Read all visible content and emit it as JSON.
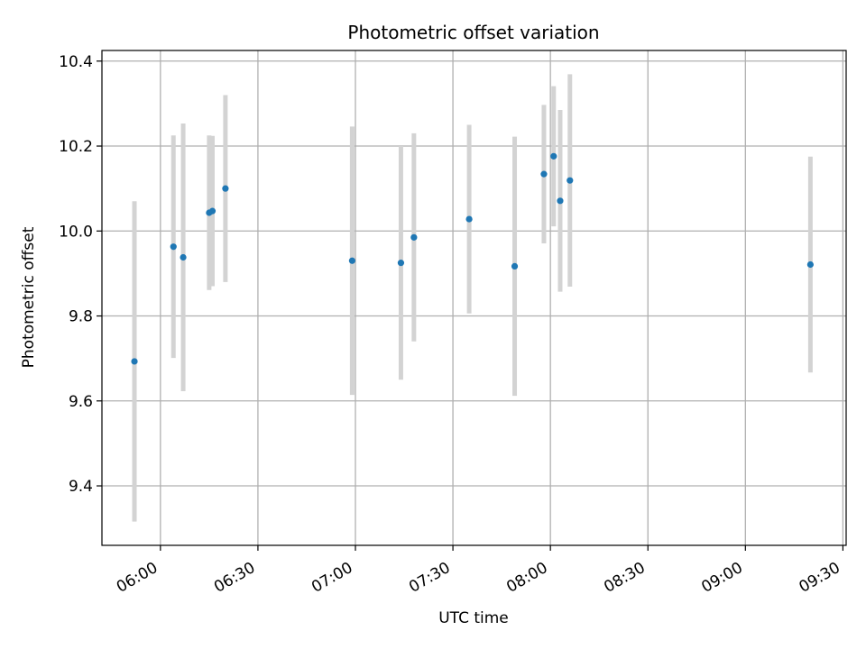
{
  "chart_data": {
    "type": "scatter",
    "title": "Photometric offset variation",
    "xlabel": "UTC time",
    "ylabel": "Photometric offset",
    "x_tick_labels": [
      "06:00",
      "06:30",
      "07:00",
      "07:30",
      "08:00",
      "08:30",
      "09:00",
      "09:30"
    ],
    "y_tick_labels": [
      "9.4",
      "9.6",
      "9.8",
      "10.0",
      "10.2",
      "10.4"
    ],
    "x_ticks": [
      "06:00",
      "06:30",
      "07:00",
      "07:30",
      "08:00",
      "08:30",
      "09:00",
      "09:30"
    ],
    "y_ticks": [
      9.4,
      9.6,
      9.8,
      10.0,
      10.2,
      10.4
    ],
    "xlim": [
      "05:42",
      "09:31"
    ],
    "ylim": [
      9.26,
      10.425
    ],
    "grid": true,
    "marker_color": "#1f77b4",
    "errorbar_color": "#d3d3d3",
    "points": [
      {
        "x": "05:52",
        "y": 9.693,
        "err": 0.377
      },
      {
        "x": "06:04",
        "y": 9.963,
        "err": 0.262
      },
      {
        "x": "06:07",
        "y": 9.938,
        "err": 0.315
      },
      {
        "x": "06:15",
        "y": 10.043,
        "err": 0.182
      },
      {
        "x": "06:16",
        "y": 10.047,
        "err": 0.177
      },
      {
        "x": "06:20",
        "y": 10.1,
        "err": 0.22
      },
      {
        "x": "06:59",
        "y": 9.93,
        "err": 0.316
      },
      {
        "x": "07:14",
        "y": 9.925,
        "err": 0.275
      },
      {
        "x": "07:18",
        "y": 9.985,
        "err": 0.245
      },
      {
        "x": "07:35",
        "y": 10.028,
        "err": 0.222
      },
      {
        "x": "07:49",
        "y": 9.917,
        "err": 0.305
      },
      {
        "x": "07:58",
        "y": 10.134,
        "err": 0.163
      },
      {
        "x": "08:01",
        "y": 10.176,
        "err": 0.165
      },
      {
        "x": "08:03",
        "y": 10.071,
        "err": 0.214
      },
      {
        "x": "08:06",
        "y": 10.119,
        "err": 0.25
      },
      {
        "x": "09:20",
        "y": 9.921,
        "err": 0.254
      }
    ]
  }
}
